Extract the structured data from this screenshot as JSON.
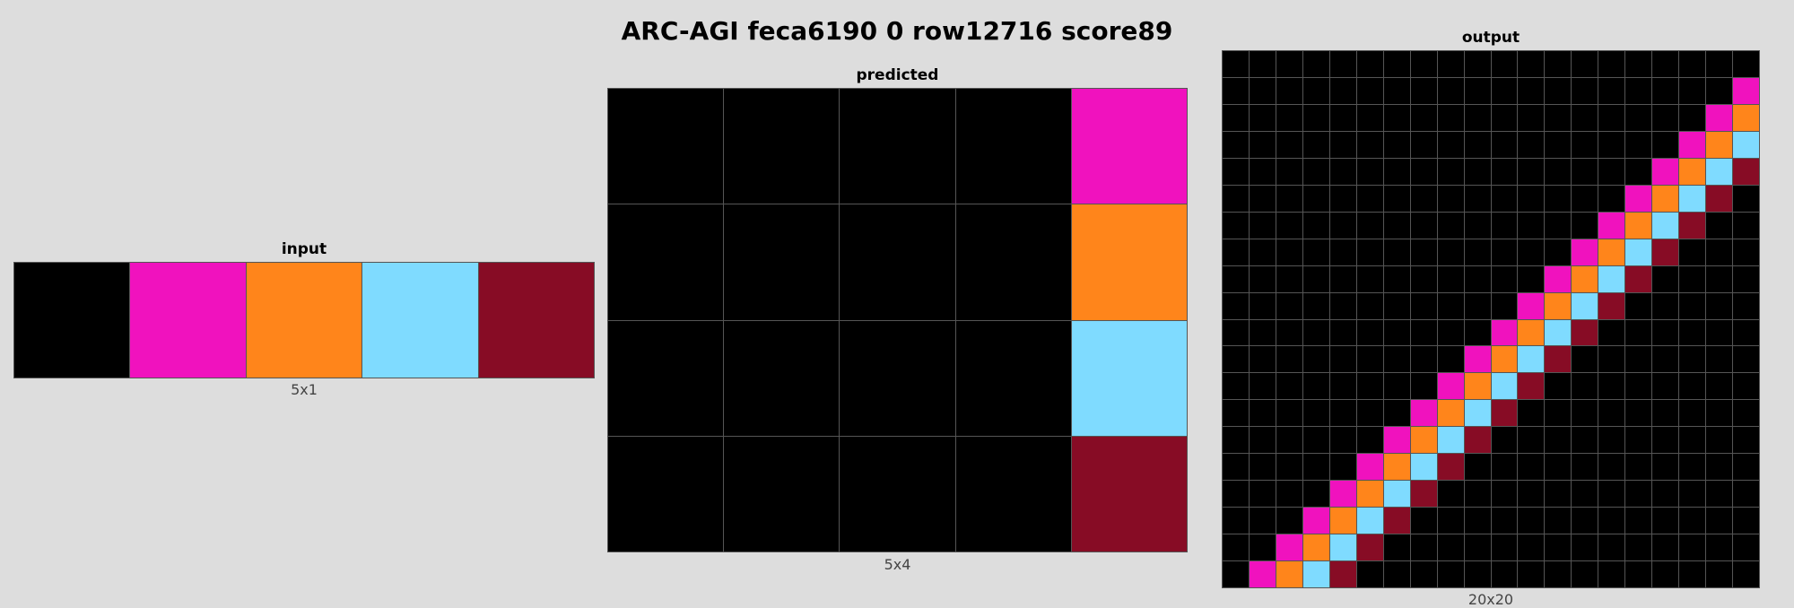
{
  "title": "ARC-AGI feca6190 0 row12716 score89",
  "palette": {
    "0": "#000000",
    "6": "#f012be",
    "7": "#ff851b",
    "8": "#7fdbff",
    "9": "#870c25"
  },
  "panels": {
    "input": {
      "label": "input",
      "caption": "5x1",
      "cols": 5,
      "rows": 1,
      "cells": [
        [
          0,
          6,
          7,
          8,
          9
        ]
      ]
    },
    "predicted": {
      "label": "predicted",
      "caption": "5x4",
      "cols": 5,
      "rows": 4,
      "cells": [
        [
          0,
          0,
          0,
          0,
          6
        ],
        [
          0,
          0,
          0,
          0,
          7
        ],
        [
          0,
          0,
          0,
          0,
          8
        ],
        [
          0,
          0,
          0,
          0,
          9
        ]
      ]
    },
    "output": {
      "label": "output",
      "caption": "20x20",
      "cols": 20,
      "rows": 20,
      "cells": [
        [
          0,
          0,
          0,
          0,
          0,
          0,
          0,
          0,
          0,
          0,
          0,
          0,
          0,
          0,
          0,
          0,
          0,
          0,
          0,
          0
        ],
        [
          0,
          0,
          0,
          0,
          0,
          0,
          0,
          0,
          0,
          0,
          0,
          0,
          0,
          0,
          0,
          0,
          0,
          0,
          0,
          6
        ],
        [
          0,
          0,
          0,
          0,
          0,
          0,
          0,
          0,
          0,
          0,
          0,
          0,
          0,
          0,
          0,
          0,
          0,
          0,
          6,
          7
        ],
        [
          0,
          0,
          0,
          0,
          0,
          0,
          0,
          0,
          0,
          0,
          0,
          0,
          0,
          0,
          0,
          0,
          0,
          6,
          7,
          8
        ],
        [
          0,
          0,
          0,
          0,
          0,
          0,
          0,
          0,
          0,
          0,
          0,
          0,
          0,
          0,
          0,
          0,
          6,
          7,
          8,
          9
        ],
        [
          0,
          0,
          0,
          0,
          0,
          0,
          0,
          0,
          0,
          0,
          0,
          0,
          0,
          0,
          0,
          6,
          7,
          8,
          9,
          0
        ],
        [
          0,
          0,
          0,
          0,
          0,
          0,
          0,
          0,
          0,
          0,
          0,
          0,
          0,
          0,
          6,
          7,
          8,
          9,
          0,
          0
        ],
        [
          0,
          0,
          0,
          0,
          0,
          0,
          0,
          0,
          0,
          0,
          0,
          0,
          0,
          6,
          7,
          8,
          9,
          0,
          0,
          0
        ],
        [
          0,
          0,
          0,
          0,
          0,
          0,
          0,
          0,
          0,
          0,
          0,
          0,
          6,
          7,
          8,
          9,
          0,
          0,
          0,
          0
        ],
        [
          0,
          0,
          0,
          0,
          0,
          0,
          0,
          0,
          0,
          0,
          0,
          6,
          7,
          8,
          9,
          0,
          0,
          0,
          0,
          0
        ],
        [
          0,
          0,
          0,
          0,
          0,
          0,
          0,
          0,
          0,
          0,
          6,
          7,
          8,
          9,
          0,
          0,
          0,
          0,
          0,
          0
        ],
        [
          0,
          0,
          0,
          0,
          0,
          0,
          0,
          0,
          0,
          6,
          7,
          8,
          9,
          0,
          0,
          0,
          0,
          0,
          0,
          0
        ],
        [
          0,
          0,
          0,
          0,
          0,
          0,
          0,
          0,
          6,
          7,
          8,
          9,
          0,
          0,
          0,
          0,
          0,
          0,
          0,
          0
        ],
        [
          0,
          0,
          0,
          0,
          0,
          0,
          0,
          6,
          7,
          8,
          9,
          0,
          0,
          0,
          0,
          0,
          0,
          0,
          0,
          0
        ],
        [
          0,
          0,
          0,
          0,
          0,
          0,
          6,
          7,
          8,
          9,
          0,
          0,
          0,
          0,
          0,
          0,
          0,
          0,
          0,
          0
        ],
        [
          0,
          0,
          0,
          0,
          0,
          6,
          7,
          8,
          9,
          0,
          0,
          0,
          0,
          0,
          0,
          0,
          0,
          0,
          0,
          0
        ],
        [
          0,
          0,
          0,
          0,
          6,
          7,
          8,
          9,
          0,
          0,
          0,
          0,
          0,
          0,
          0,
          0,
          0,
          0,
          0,
          0
        ],
        [
          0,
          0,
          0,
          6,
          7,
          8,
          9,
          0,
          0,
          0,
          0,
          0,
          0,
          0,
          0,
          0,
          0,
          0,
          0,
          0
        ],
        [
          0,
          0,
          6,
          7,
          8,
          9,
          0,
          0,
          0,
          0,
          0,
          0,
          0,
          0,
          0,
          0,
          0,
          0,
          0,
          0
        ],
        [
          0,
          6,
          7,
          8,
          9,
          0,
          0,
          0,
          0,
          0,
          0,
          0,
          0,
          0,
          0,
          0,
          0,
          0,
          0,
          0
        ]
      ]
    }
  }
}
